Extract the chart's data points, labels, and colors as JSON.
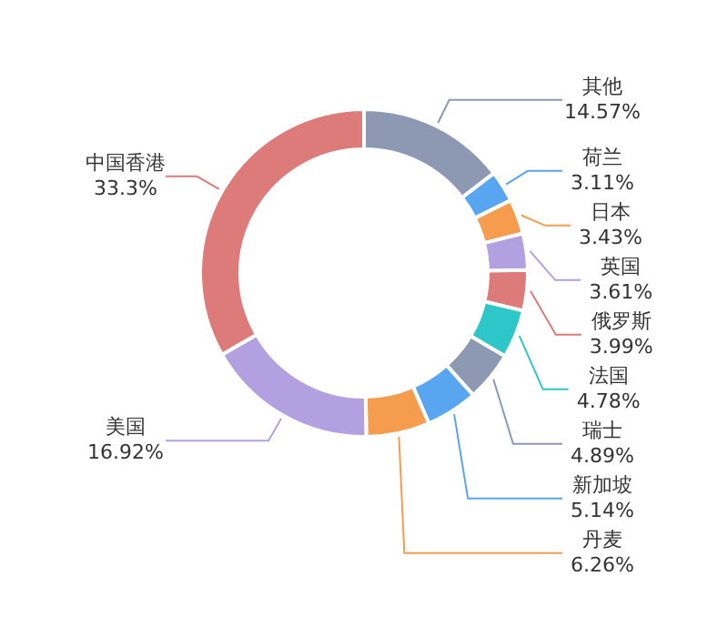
{
  "chart_data": {
    "type": "donut",
    "categories": [
      "其他",
      "荷兰",
      "日本",
      "英国",
      "俄罗斯",
      "法国",
      "瑞士",
      "新加坡",
      "丹麦",
      "美国",
      "中国香港"
    ],
    "values": [
      14.57,
      3.11,
      3.43,
      3.61,
      3.99,
      4.78,
      4.89,
      5.14,
      6.26,
      16.92,
      33.3
    ],
    "value_labels": [
      "14.57%",
      "3.11%",
      "3.43%",
      "3.61%",
      "3.99%",
      "4.78%",
      "4.89%",
      "5.14%",
      "6.26%",
      "16.92%",
      "33.3%"
    ],
    "colors": [
      "#8d98b3",
      "#58a5f0",
      "#f59c4e",
      "#b3a0e0",
      "#dd7b7b",
      "#2ec7c9",
      "#8d98b3",
      "#58a5f0",
      "#f59c4e",
      "#b3a0e0",
      "#dd7b7b"
    ]
  }
}
